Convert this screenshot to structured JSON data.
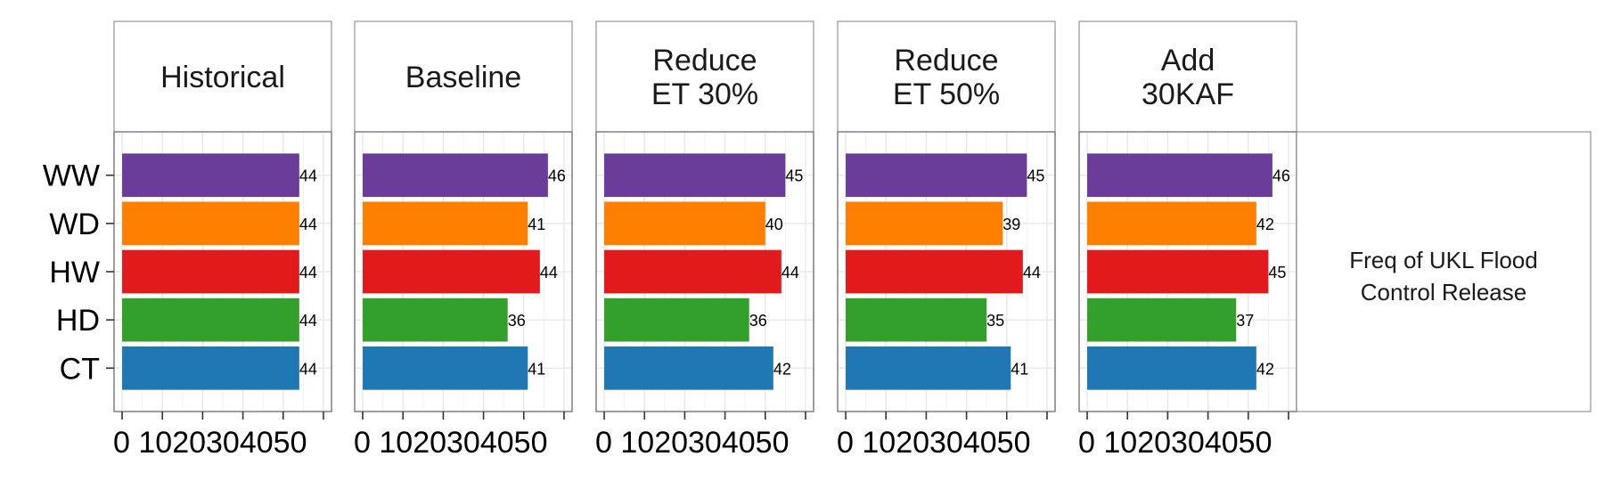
{
  "chart_data": {
    "type": "bar",
    "orientation": "horizontal",
    "facets": [
      {
        "title": [
          "Historical"
        ],
        "values": [
          44,
          44,
          44,
          44,
          44
        ]
      },
      {
        "title": [
          "Baseline"
        ],
        "values": [
          46,
          41,
          44,
          36,
          41
        ]
      },
      {
        "title": [
          "Reduce",
          "ET 30%"
        ],
        "values": [
          45,
          40,
          44,
          36,
          42
        ]
      },
      {
        "title": [
          "Reduce",
          "ET 50%"
        ],
        "values": [
          45,
          39,
          44,
          35,
          41
        ]
      },
      {
        "title": [
          "Add",
          "30KAF"
        ],
        "values": [
          46,
          42,
          45,
          37,
          42
        ]
      }
    ],
    "categories": [
      "WW",
      "WD",
      "HW",
      "HD",
      "CT"
    ],
    "colors": {
      "WW": "#6a3d9a",
      "WD": "#ff7f00",
      "HW": "#e31a1c",
      "HD": "#33a02c",
      "CT": "#1f78b4"
    },
    "xticks": [
      0,
      10,
      20,
      30,
      40,
      50
    ],
    "xtick_label": "0 1020304050",
    "xlim": [
      -2,
      52
    ],
    "side_label": [
      "Freq of UKL Flood",
      "Control Release"
    ],
    "grid": true,
    "data_labels": true
  }
}
